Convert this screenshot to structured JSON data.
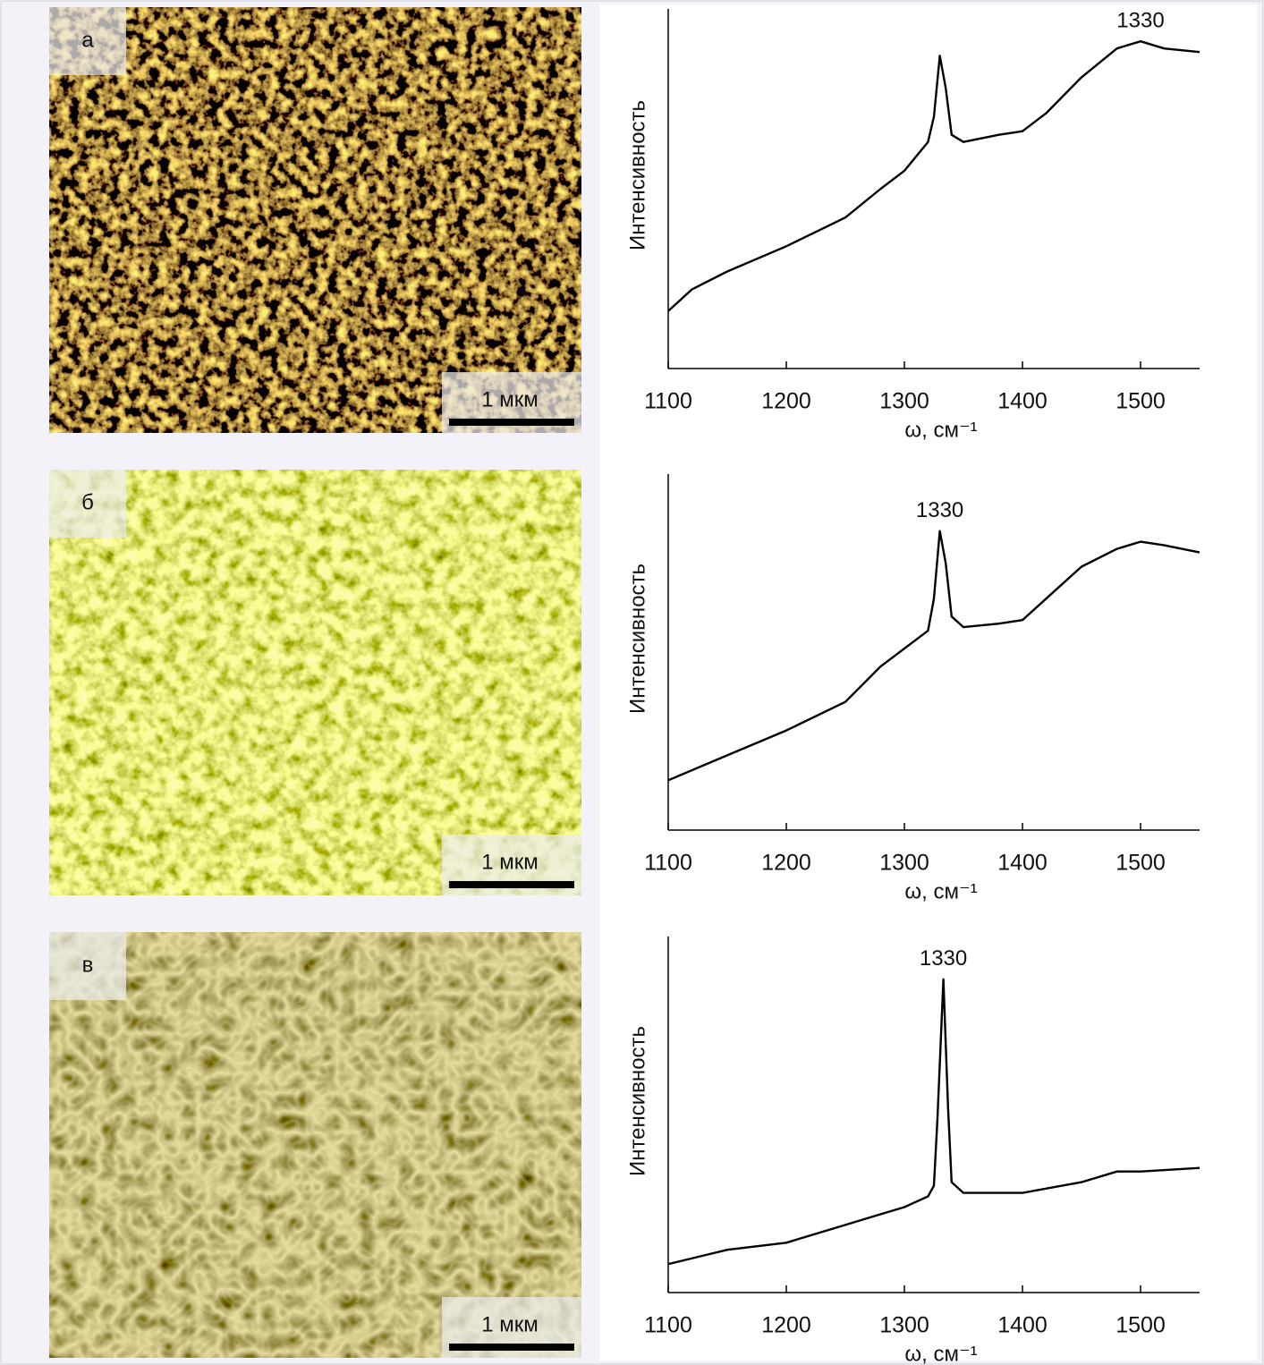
{
  "panels": [
    {
      "label": "а",
      "scale_bar": "1 мкм"
    },
    {
      "label": "б",
      "scale_bar": "1 мкм"
    },
    {
      "label": "в",
      "scale_bar": "1 мкм"
    }
  ],
  "chart_data": [
    {
      "type": "line",
      "y_label": "Интенсивность",
      "x_label": "ω, см⁻¹",
      "annotation": "1330",
      "color": "#000000",
      "x": [
        1100,
        1120,
        1150,
        1200,
        1250,
        1280,
        1300,
        1320,
        1325,
        1330,
        1335,
        1340,
        1350,
        1380,
        1400,
        1420,
        1450,
        1480,
        1500,
        1520,
        1550
      ],
      "values": [
        16,
        22,
        27,
        34,
        42,
        50,
        55,
        63,
        70,
        87,
        78,
        65,
        63,
        65,
        66,
        71,
        81,
        89,
        91,
        89,
        88
      ],
      "xlim": [
        1100,
        1550
      ],
      "ylim": [
        0,
        100
      ],
      "xticks": [
        1100,
        1200,
        1300,
        1400,
        1500
      ]
    },
    {
      "type": "line",
      "y_label": "Интенсивность",
      "x_label": "ω, см⁻¹",
      "annotation": "1330",
      "color": "#000000",
      "x": [
        1100,
        1150,
        1200,
        1250,
        1280,
        1300,
        1320,
        1325,
        1330,
        1335,
        1340,
        1350,
        1380,
        1400,
        1420,
        1450,
        1480,
        1500,
        1520,
        1550
      ],
      "values": [
        14,
        21,
        28,
        36,
        46,
        51,
        56,
        65,
        84,
        75,
        60,
        57,
        58,
        59,
        65,
        74,
        79,
        81,
        80,
        78
      ],
      "xlim": [
        1100,
        1550
      ],
      "ylim": [
        0,
        100
      ],
      "xticks": [
        1100,
        1200,
        1300,
        1400,
        1500
      ]
    },
    {
      "type": "line",
      "y_label": "Интенсивность",
      "x_label": "ω, см⁻¹",
      "annotation": "1330",
      "color": "#000000",
      "x": [
        1100,
        1150,
        1200,
        1250,
        1280,
        1300,
        1320,
        1325,
        1328,
        1333,
        1337,
        1340,
        1350,
        1400,
        1450,
        1480,
        1500,
        1550
      ],
      "values": [
        8,
        12,
        14,
        19,
        22,
        24,
        27,
        30,
        49,
        88,
        52,
        31,
        28,
        28,
        31,
        34,
        34,
        35
      ],
      "xlim": [
        1100,
        1550
      ],
      "ylim": [
        0,
        100
      ],
      "xticks": [
        1100,
        1200,
        1300,
        1400,
        1500
      ]
    }
  ]
}
